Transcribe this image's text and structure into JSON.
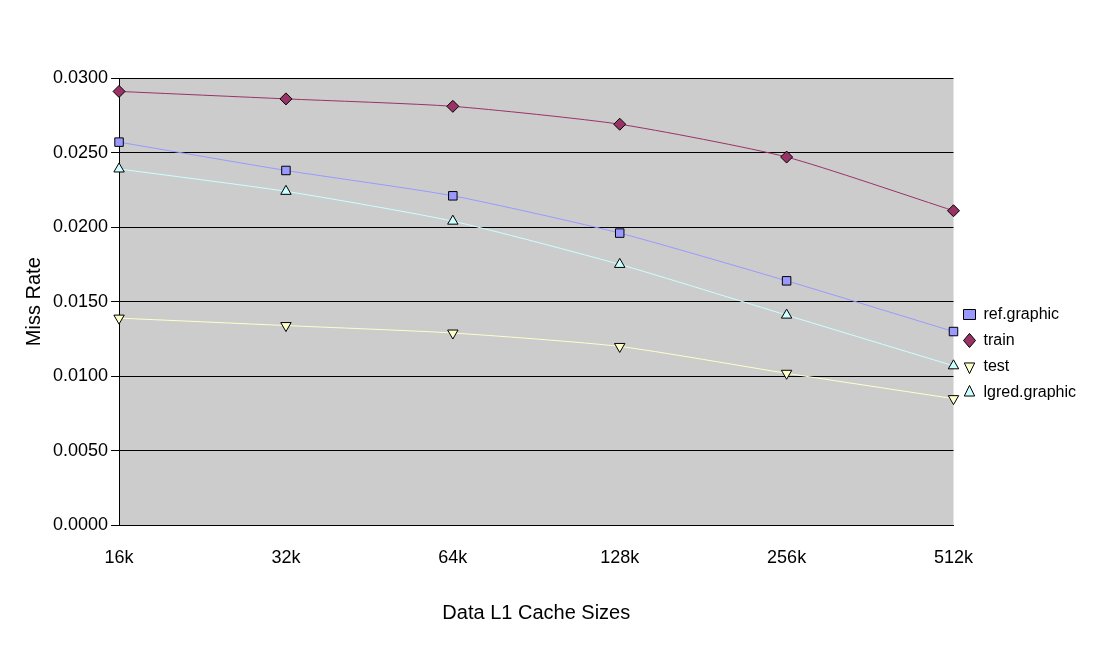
{
  "chart_data": {
    "type": "line",
    "xlabel": "Data L1 Cache Sizes",
    "ylabel": "Miss Rate",
    "categories": [
      "16k",
      "32k",
      "64k",
      "128k",
      "256k",
      "512k"
    ],
    "ylim": [
      0,
      0.03
    ],
    "yticks": [
      {
        "value": 0,
        "label": "0.0000"
      },
      {
        "value": 0.005,
        "label": "0.0050"
      },
      {
        "value": 0.01,
        "label": "0.0100"
      },
      {
        "value": 0.015,
        "label": "0.0150"
      },
      {
        "value": 0.02,
        "label": "0.0200"
      },
      {
        "value": 0.025,
        "label": "0.0250"
      },
      {
        "value": 0.03,
        "label": "0.0300"
      }
    ],
    "grid": "y",
    "legend": "right",
    "series": [
      {
        "name": "ref.graphic",
        "color": "#9999ff",
        "marker": "square",
        "values": [
          0.0257,
          0.0238,
          0.0221,
          0.0196,
          0.0164,
          0.013
        ]
      },
      {
        "name": "train",
        "color": "#993366",
        "marker": "diamond",
        "values": [
          0.0291,
          0.0286,
          0.0281,
          0.0269,
          0.0247,
          0.0211
        ]
      },
      {
        "name": "test",
        "color": "#ffffcc",
        "marker": "triangle-down",
        "values": [
          0.0139,
          0.0134,
          0.0129,
          0.012,
          0.0102,
          0.0085
        ]
      },
      {
        "name": "lgred.graphic",
        "color": "#ccffff",
        "marker": "triangle",
        "values": [
          0.0239,
          0.0224,
          0.0204,
          0.0175,
          0.0141,
          0.0107
        ]
      }
    ]
  }
}
